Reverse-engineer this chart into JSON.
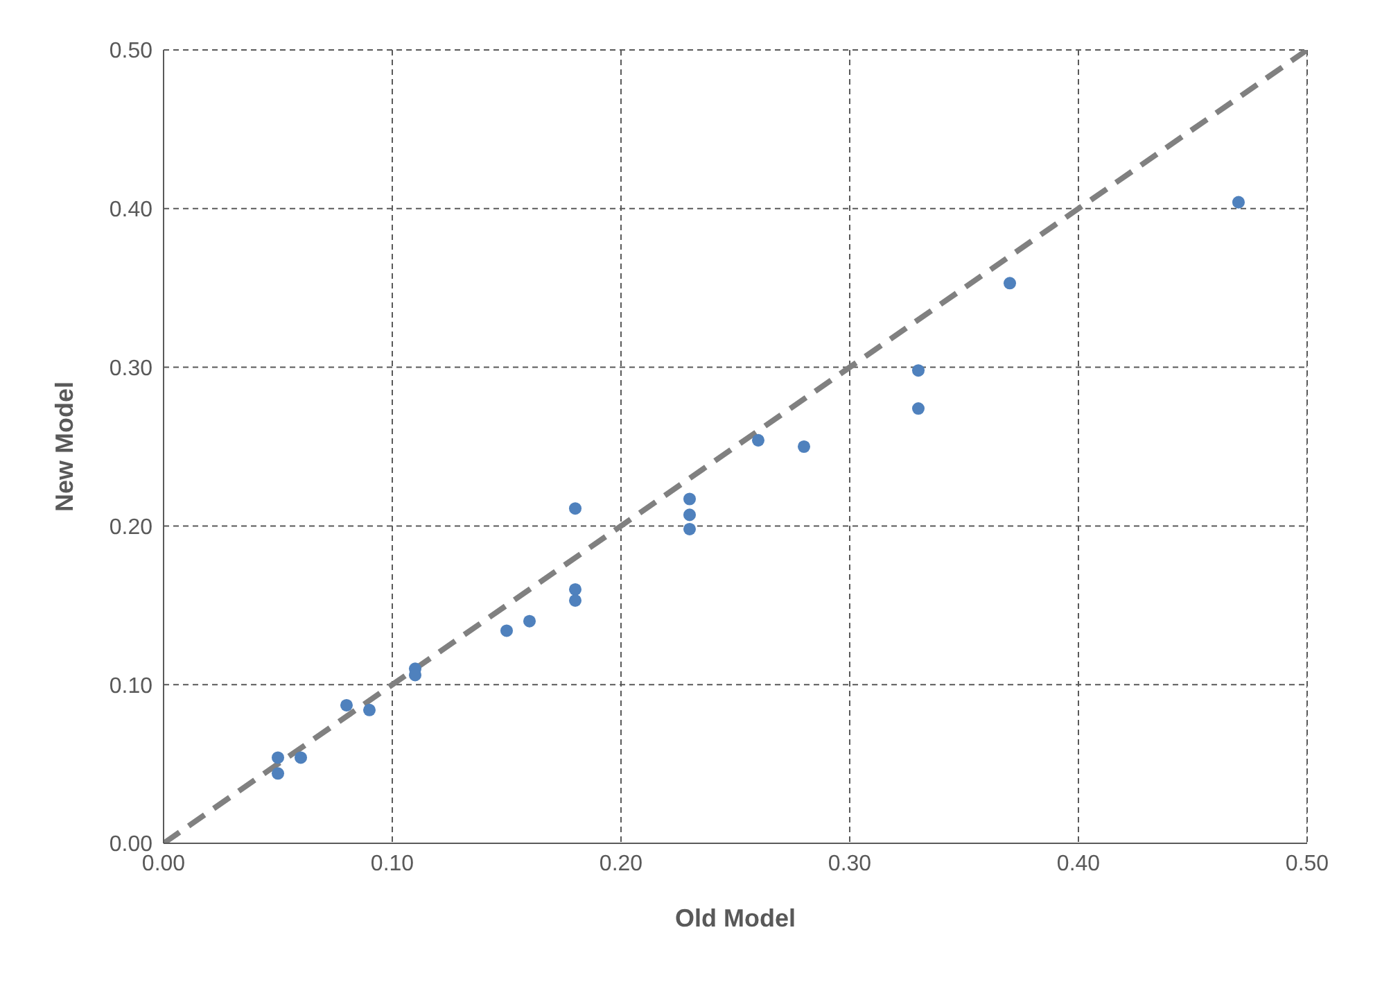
{
  "chart_data": {
    "type": "scatter",
    "xlabel": "Old Model",
    "ylabel": "New Model",
    "xlim": [
      0,
      0.5
    ],
    "ylim": [
      0,
      0.5
    ],
    "xticks": [
      {
        "value": 0,
        "label": "0.00"
      },
      {
        "value": 0.1,
        "label": "0.10"
      },
      {
        "value": 0.2,
        "label": "0.20"
      },
      {
        "value": 0.3,
        "label": "0.30"
      },
      {
        "value": 0.4,
        "label": "0.40"
      },
      {
        "value": 0.5,
        "label": "0.50"
      }
    ],
    "yticks": [
      {
        "value": 0,
        "label": "0.00"
      },
      {
        "value": 0.1,
        "label": "0.10"
      },
      {
        "value": 0.2,
        "label": "0.20"
      },
      {
        "value": 0.3,
        "label": "0.30"
      },
      {
        "value": 0.4,
        "label": "0.40"
      },
      {
        "value": 0.5,
        "label": "0.50"
      }
    ],
    "grid": true,
    "legend": false,
    "series": [
      {
        "color": "#4f81bd",
        "marker": "circle",
        "x": [
          0.05,
          0.05,
          0.06,
          0.08,
          0.09,
          0.11,
          0.11,
          0.15,
          0.16,
          0.18,
          0.18,
          0.18,
          0.23,
          0.23,
          0.23,
          0.26,
          0.28,
          0.33,
          0.33,
          0.37,
          0.47
        ],
        "values": [
          0.054,
          0.044,
          0.054,
          0.087,
          0.084,
          0.11,
          0.106,
          0.134,
          0.14,
          0.211,
          0.16,
          0.153,
          0.217,
          0.207,
          0.198,
          0.254,
          0.25,
          0.298,
          0.274,
          0.353,
          0.404
        ]
      },
      {
        "type": "line",
        "color": "#808080",
        "marker": "none",
        "line_style": "dashed",
        "x": [
          0,
          0.5
        ],
        "values": [
          0,
          0.5
        ]
      }
    ]
  }
}
